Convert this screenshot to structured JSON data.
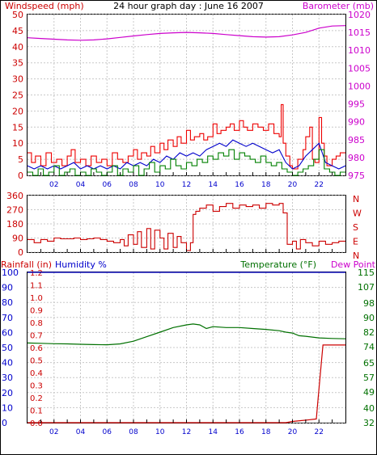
{
  "title": "24 hour graph day : June 16 2007",
  "colors": {
    "wind": "#cc0000",
    "gust": "#ee0000",
    "barometer": "#cc00cc",
    "avg": "#0000cc",
    "low": "#008000",
    "dir": "#cc0000",
    "rain": "#cc0000",
    "humidity": "#0000cc",
    "temperature": "#007000",
    "grid": "#c8c8c8",
    "axis": "#000000"
  },
  "x_axis": {
    "ticks": [
      "02",
      "04",
      "06",
      "08",
      "10",
      "12",
      "14",
      "16",
      "18",
      "20",
      "22"
    ],
    "range_hours": [
      0,
      24
    ]
  },
  "chart_data": [
    {
      "type": "line",
      "panel": "wind-barometer",
      "left_axis_label": "Windspeed (mph)",
      "right_axis_label": "Barometer (mb)",
      "ylim": [
        0,
        50
      ],
      "y_ticks": [
        "0",
        "5",
        "10",
        "15",
        "20",
        "25",
        "30",
        "35",
        "40",
        "45",
        "50"
      ],
      "y2lim": [
        975,
        1020
      ],
      "y2_ticks": [
        "975",
        "980",
        "985",
        "990",
        "995",
        "1000",
        "1005",
        "1010",
        "1015",
        "1020"
      ],
      "series": [
        {
          "key": "gust",
          "axis": "left",
          "style": "step",
          "x": [
            0,
            0.3,
            0.6,
            1,
            1.4,
            1.8,
            2.2,
            2.6,
            3,
            3.3,
            3.6,
            4,
            4.4,
            4.8,
            5.2,
            5.6,
            6,
            6.4,
            6.8,
            7.2,
            7.6,
            8,
            8.3,
            8.6,
            9,
            9.3,
            9.6,
            10,
            10.3,
            10.6,
            11,
            11.3,
            11.6,
            12,
            12.3,
            12.6,
            13,
            13.3,
            13.6,
            14,
            14.3,
            14.6,
            15,
            15.3,
            15.6,
            16,
            16.3,
            16.6,
            17,
            17.4,
            17.8,
            18.2,
            18.6,
            19,
            19.15,
            19.3,
            19.5,
            19.8,
            20,
            20.4,
            20.8,
            21,
            21.3,
            21.5,
            21.7,
            22,
            22.2,
            22.4,
            22.6,
            23,
            23.3,
            23.6,
            24
          ],
          "y": [
            7,
            4,
            6,
            3,
            7,
            4,
            5,
            3,
            6,
            8,
            4,
            5,
            3,
            6,
            4,
            5,
            3,
            7,
            5,
            4,
            6,
            8,
            5,
            7,
            6,
            9,
            7,
            10,
            8,
            11,
            9,
            12,
            10,
            14,
            11,
            12,
            13,
            11,
            12,
            16,
            13,
            14,
            15,
            16,
            14,
            17,
            15,
            14,
            16,
            15,
            14,
            16,
            13,
            12,
            22,
            10,
            6,
            3,
            2,
            5,
            8,
            12,
            15,
            5,
            4,
            18,
            10,
            6,
            3,
            5,
            6,
            7,
            7
          ]
        },
        {
          "key": "avg",
          "axis": "left",
          "style": "line",
          "x": [
            0,
            0.5,
            1,
            1.5,
            2,
            2.5,
            3,
            3.5,
            4,
            4.5,
            5,
            5.5,
            6,
            6.5,
            7,
            7.5,
            8,
            8.5,
            9,
            9.5,
            10,
            10.5,
            11,
            11.5,
            12,
            12.5,
            13,
            13.5,
            14,
            14.5,
            15,
            15.5,
            16,
            16.5,
            17,
            17.5,
            18,
            18.5,
            19,
            19.5,
            20,
            20.5,
            21,
            21.5,
            22,
            22.5,
            23,
            23.5,
            24
          ],
          "y": [
            3,
            2,
            3,
            2,
            3,
            2,
            3,
            4,
            2,
            3,
            2,
            3,
            2,
            3,
            2,
            4,
            3,
            4,
            3,
            5,
            4,
            6,
            5,
            7,
            6,
            7,
            6,
            8,
            9,
            10,
            9,
            11,
            10,
            9,
            10,
            9,
            8,
            7,
            8,
            4,
            2,
            3,
            6,
            8,
            10,
            4,
            3,
            2,
            3
          ]
        },
        {
          "key": "low",
          "axis": "left",
          "style": "step",
          "x": [
            0,
            0.4,
            0.8,
            1.2,
            1.6,
            2,
            2.4,
            2.8,
            3.2,
            3.6,
            4,
            4.4,
            4.8,
            5.2,
            5.6,
            6,
            6.4,
            6.8,
            7.2,
            7.6,
            8,
            8.4,
            8.8,
            9.2,
            9.6,
            10,
            10.4,
            10.8,
            11.2,
            11.6,
            12,
            12.4,
            12.8,
            13.2,
            13.6,
            14,
            14.4,
            14.8,
            15.2,
            15.6,
            16,
            16.4,
            16.8,
            17.2,
            17.6,
            18,
            18.4,
            18.8,
            19.2,
            19.6,
            20,
            20.4,
            20.8,
            21.2,
            21.6,
            22,
            22.4,
            22.8,
            23.2,
            23.6,
            24
          ],
          "y": [
            1,
            0,
            2,
            0,
            1,
            3,
            0,
            1,
            2,
            0,
            1,
            0,
            2,
            1,
            0,
            1,
            3,
            0,
            2,
            1,
            3,
            0,
            2,
            4,
            1,
            3,
            2,
            5,
            3,
            2,
            4,
            3,
            5,
            4,
            6,
            5,
            7,
            6,
            8,
            5,
            7,
            6,
            5,
            4,
            6,
            4,
            3,
            4,
            2,
            1,
            0,
            1,
            2,
            3,
            5,
            8,
            2,
            1,
            0,
            1,
            1
          ]
        },
        {
          "key": "barometer",
          "axis": "right",
          "style": "line",
          "x": [
            0,
            1,
            2,
            3,
            4,
            5,
            6,
            7,
            8,
            9,
            10,
            11,
            12,
            13,
            14,
            15,
            16,
            17,
            18,
            19,
            20,
            21,
            22,
            23,
            24
          ],
          "y": [
            1013.5,
            1013.3,
            1013.1,
            1012.9,
            1012.8,
            1012.9,
            1013.2,
            1013.6,
            1014,
            1014.4,
            1014.7,
            1014.9,
            1015,
            1014.9,
            1014.7,
            1014.4,
            1014.1,
            1013.8,
            1013.7,
            1013.8,
            1014.3,
            1015,
            1016.2,
            1016.8,
            1016.9
          ]
        }
      ]
    },
    {
      "type": "line",
      "panel": "wind-direction",
      "ylim": [
        0,
        360
      ],
      "y_ticks": [
        "0",
        "90",
        "180",
        "270",
        "360"
      ],
      "right_labels": [
        "N",
        "W",
        "S",
        "E",
        "N"
      ],
      "series": [
        {
          "key": "dir",
          "style": "step",
          "x": [
            0,
            0.5,
            1,
            1.5,
            2,
            2.5,
            3,
            3.5,
            4,
            4.5,
            5,
            5.5,
            6,
            6.5,
            7,
            7.3,
            7.6,
            8,
            8.3,
            8.6,
            9,
            9.3,
            9.6,
            10,
            10.3,
            10.6,
            11,
            11.3,
            11.6,
            12,
            12.3,
            12.5,
            12.7,
            13,
            13.5,
            14,
            14.5,
            15,
            15.5,
            16,
            16.5,
            17,
            17.5,
            18,
            18.5,
            19,
            19.3,
            19.6,
            20,
            20.3,
            20.6,
            21,
            21.5,
            22,
            22.5,
            23,
            23.5,
            24
          ],
          "y": [
            80,
            60,
            80,
            70,
            90,
            85,
            85,
            90,
            80,
            85,
            90,
            80,
            70,
            60,
            80,
            40,
            110,
            50,
            130,
            30,
            150,
            20,
            140,
            90,
            20,
            120,
            30,
            100,
            60,
            10,
            60,
            240,
            260,
            280,
            300,
            260,
            290,
            310,
            280,
            300,
            290,
            300,
            280,
            310,
            300,
            310,
            250,
            50,
            70,
            20,
            80,
            60,
            40,
            70,
            50,
            60,
            70,
            70
          ]
        }
      ]
    },
    {
      "type": "line",
      "panel": "rain-humidity-temperature",
      "rain_label": "Rainfall (in)",
      "humidity_label": "Humidity %",
      "temperature_label": "Temperature (°F)",
      "dewpoint_label": "Dew Point",
      "rain_ticks": [
        "0.0",
        "0.1",
        "0.2",
        "0.3",
        "0.4",
        "0.5",
        "0.6",
        "0.7",
        "0.8",
        "0.9",
        "1.0",
        "1.1",
        "1.2"
      ],
      "humidity_ticks": [
        "0",
        "10",
        "20",
        "30",
        "40",
        "50",
        "60",
        "70",
        "80",
        "90",
        "100"
      ],
      "temperature_ticks": [
        "32",
        "40",
        "49",
        "57",
        "65",
        "74",
        "82",
        "90",
        "98",
        "107",
        "115"
      ],
      "rain_ylim": [
        0,
        1.2
      ],
      "temperature_ylim": [
        32,
        115
      ],
      "series": [
        {
          "key": "temperature",
          "axis": "temperature",
          "style": "line",
          "x": [
            0,
            1,
            2,
            3,
            4,
            5,
            6,
            7,
            8,
            9,
            10,
            11,
            12,
            12.5,
            13,
            13.5,
            14,
            15,
            16,
            17,
            18,
            19,
            19.5,
            20,
            20.5,
            21,
            22,
            23,
            24
          ],
          "y": [
            76,
            75.8,
            75.6,
            75.5,
            75.3,
            75.1,
            75,
            75.5,
            77,
            79.5,
            82,
            84.5,
            86,
            86.5,
            86,
            84,
            85,
            84.5,
            84.5,
            84,
            83.5,
            82.8,
            82,
            81.5,
            80,
            79.7,
            78.8,
            78.5,
            78.3
          ]
        },
        {
          "key": "humidity",
          "axis": "humidity",
          "style": "line",
          "x": [
            0,
            24
          ],
          "y": [
            100,
            100
          ]
        },
        {
          "key": "rain",
          "axis": "rain",
          "style": "line",
          "x": [
            0,
            19.5,
            20,
            21,
            21.8,
            21.9,
            22.2,
            22.3,
            24
          ],
          "y": [
            0,
            0,
            0.01,
            0.02,
            0.03,
            0.15,
            0.5,
            0.62,
            0.62
          ]
        }
      ]
    }
  ]
}
